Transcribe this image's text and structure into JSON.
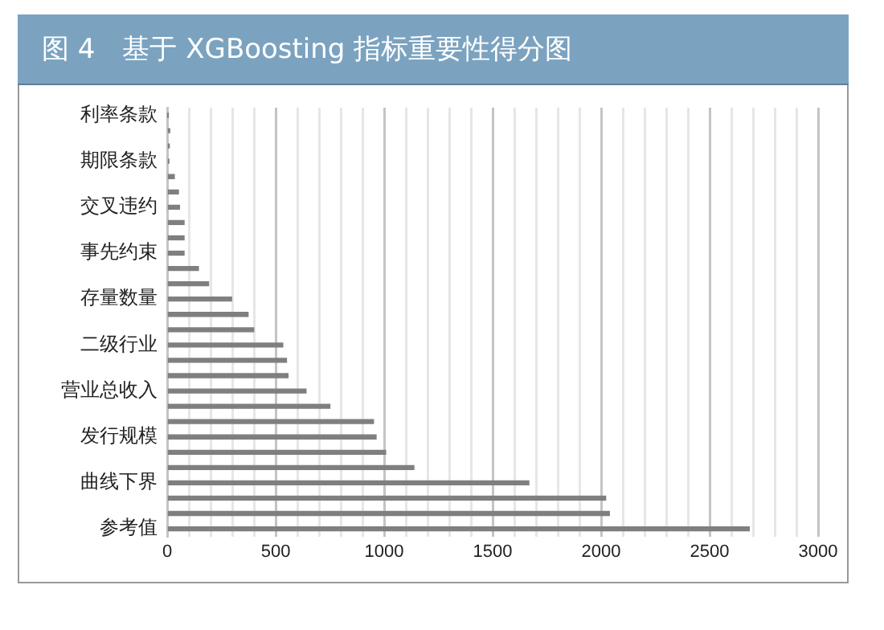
{
  "chart_data": {
    "type": "bar",
    "orientation": "horizontal",
    "title": "图 4　基于 XGBoosting 指标重要性得分图",
    "categories": [
      "利率条款",
      null,
      null,
      "期限条款",
      null,
      null,
      "交叉违约",
      null,
      null,
      "事先约束",
      null,
      null,
      "存量数量",
      null,
      null,
      "二级行业",
      null,
      null,
      "营业总收入",
      null,
      null,
      "发行规模",
      null,
      null,
      "曲线下界",
      null,
      null,
      "参考值"
    ],
    "values": [
      2,
      12,
      10,
      8,
      33,
      52,
      57,
      78,
      78,
      78,
      144,
      191,
      297,
      373,
      399,
      533,
      550,
      557,
      640,
      750,
      951,
      963,
      1007,
      1137,
      1667,
      2021,
      2038,
      2683
    ],
    "color": "#7f7f7f",
    "xlim": [
      0,
      3000
    ],
    "xticks": [
      0,
      {
        "value": 100,
        "label": null
      },
      {
        "value": 200,
        "label": null
      },
      {
        "value": 300,
        "label": null
      },
      {
        "value": 400,
        "label": null
      },
      500,
      {
        "value": 600,
        "label": null
      },
      {
        "value": 700,
        "label": null
      },
      {
        "value": 800,
        "label": null
      },
      {
        "value": 900,
        "label": null
      },
      1000,
      {
        "value": 1100,
        "label": null
      },
      {
        "value": 1200,
        "label": null
      },
      {
        "value": 1300,
        "label": null
      },
      {
        "value": 1400,
        "label": null
      },
      1500,
      {
        "value": 1600,
        "label": null
      },
      {
        "value": 1700,
        "label": null
      },
      {
        "value": 1800,
        "label": null
      },
      {
        "value": 1900,
        "label": null
      },
      2000,
      {
        "value": 2100,
        "label": null
      },
      {
        "value": 2200,
        "label": null
      },
      {
        "value": 2300,
        "label": null
      },
      {
        "value": 2400,
        "label": null
      },
      2500,
      {
        "value": 2600,
        "label": null
      },
      {
        "value": 2700,
        "label": null
      },
      {
        "value": 2800,
        "label": null
      },
      {
        "value": 2900,
        "label": null
      },
      3000
    ],
    "grid": "x"
  }
}
